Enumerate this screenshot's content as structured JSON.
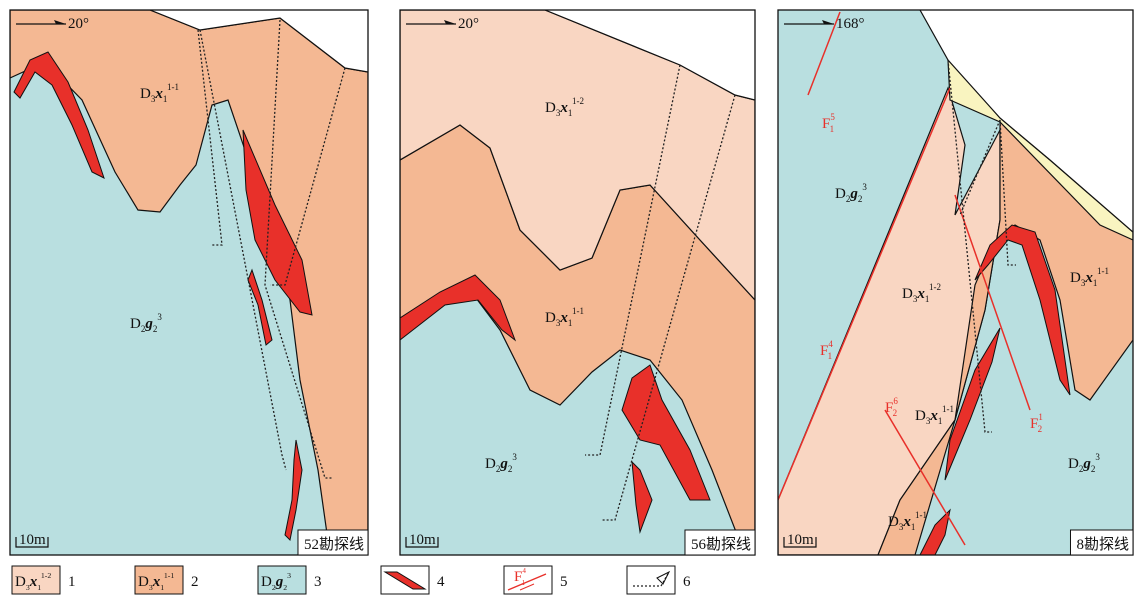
{
  "panels": [
    {
      "orientation": "20°",
      "labels": [
        [
          "D",
          "3",
          "x",
          "1",
          "1-1"
        ],
        [
          "D",
          "2",
          "g",
          "2",
          "3"
        ]
      ],
      "scale": "10m",
      "section": "52勘探线"
    },
    {
      "orientation": "20°",
      "labels": [
        [
          "D",
          "3",
          "x",
          "1",
          "1-2"
        ],
        [
          "D",
          "3",
          "x",
          "1",
          "1-1"
        ],
        [
          "D",
          "2",
          "g",
          "2",
          "3"
        ]
      ],
      "scale": "10m",
      "section": "56勘探线"
    },
    {
      "orientation": "168°",
      "labels": [
        [
          "D",
          "2",
          "g",
          "2",
          "3"
        ],
        [
          "D",
          "3",
          "x",
          "1",
          "1-2"
        ],
        [
          "D",
          "3",
          "x",
          "1",
          "1-1"
        ],
        [
          "D",
          "3",
          "x",
          "1",
          "1-1"
        ],
        [
          "D",
          "3",
          "x",
          "1",
          "1-1"
        ],
        [
          "D",
          "2",
          "g",
          "2",
          "3"
        ]
      ],
      "faults": [
        [
          "F",
          "1",
          "5"
        ],
        [
          "F",
          "1",
          "4"
        ],
        [
          "F",
          "2",
          "6"
        ],
        [
          "F",
          "2",
          "1"
        ]
      ],
      "scale": "10m",
      "section": "8勘探线"
    }
  ],
  "legend": [
    {
      "label": [
        "D",
        "3",
        "x",
        "1",
        "1-2"
      ],
      "number": "1"
    },
    {
      "label": [
        "D",
        "3",
        "x",
        "1",
        "1-1"
      ],
      "number": "2"
    },
    {
      "label": [
        "D",
        "2",
        "g",
        "2",
        "3"
      ],
      "number": "3"
    },
    {
      "number": "4"
    },
    {
      "label": [
        "F",
        "1",
        "4"
      ],
      "number": "5"
    },
    {
      "number": "6"
    }
  ]
}
